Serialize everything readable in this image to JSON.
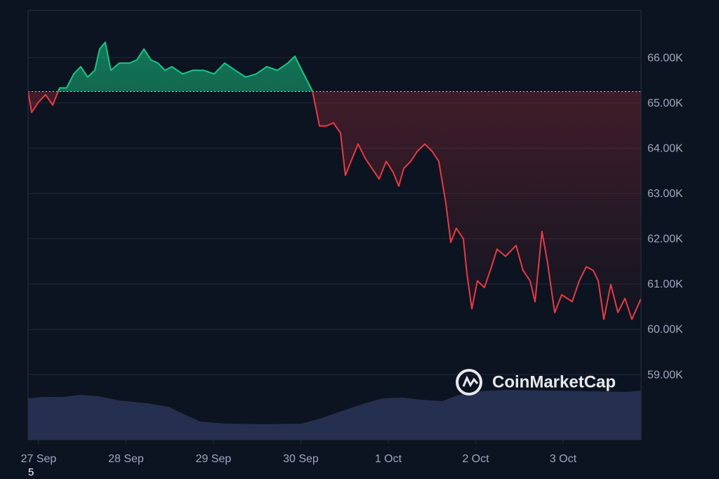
{
  "chart_data": {
    "type": "line",
    "x": [
      -0.12,
      -0.08,
      0,
      0.08,
      0.161,
      0.241,
      0.321,
      0.402,
      0.482,
      0.562,
      0.643,
      0.699,
      0.763,
      0.827,
      0.924,
      1.044,
      1.124,
      1.205,
      1.285,
      1.365,
      1.446,
      1.526,
      1.647,
      1.767,
      1.888,
      2.008,
      2.129,
      2.249,
      2.369,
      2.49,
      2.61,
      2.731,
      2.851,
      2.932,
      3.012,
      3.133,
      3.213,
      3.293,
      3.373,
      3.454,
      3.51,
      3.574,
      3.655,
      3.735,
      3.815,
      3.896,
      3.976,
      4.056,
      4.12,
      4.177,
      4.257,
      4.337,
      4.418,
      4.498,
      4.578,
      4.659,
      4.715,
      4.779,
      4.859,
      4.9,
      4.956,
      5.02,
      5.1,
      5.181,
      5.245,
      5.341,
      5.462,
      5.542,
      5.622,
      5.679,
      5.759,
      5.823,
      5.904,
      5.984,
      6.104,
      6.185,
      6.265,
      6.345,
      6.402,
      6.466,
      6.546,
      6.627,
      6.707,
      6.787,
      6.892
    ],
    "values": [
      65260,
      64790,
      65020,
      65180,
      64950,
      65330,
      65330,
      65640,
      65800,
      65570,
      65720,
      66190,
      66340,
      65720,
      65880,
      65880,
      65950,
      66190,
      65950,
      65880,
      65720,
      65800,
      65640,
      65720,
      65720,
      65640,
      65880,
      65720,
      65570,
      65640,
      65800,
      65720,
      65880,
      66030,
      65720,
      65260,
      64490,
      64490,
      64560,
      64330,
      63400,
      63710,
      64090,
      63780,
      63550,
      63320,
      63710,
      63470,
      63160,
      63550,
      63710,
      63940,
      64090,
      63940,
      63710,
      62780,
      61920,
      62230,
      62000,
      61230,
      60450,
      61070,
      60920,
      61380,
      61770,
      61610,
      61850,
      61300,
      61070,
      60610,
      62160,
      61460,
      60370,
      60760,
      60610,
      61070,
      61380,
      61300,
      61070,
      60220,
      60990,
      60370,
      60680,
      60220,
      60680
    ],
    "baseline": 65250,
    "up_color": "#16c784",
    "down_color": "#ea3943",
    "xlim": [
      -0.12,
      6.892
    ],
    "xticks": [
      {
        "value": 0,
        "label": "27 Sep"
      },
      {
        "value": 1,
        "label": "28 Sep"
      },
      {
        "value": 2,
        "label": "29 Sep"
      },
      {
        "value": 3,
        "label": "30 Sep"
      },
      {
        "value": 4,
        "label": "1 Oct"
      },
      {
        "value": 5,
        "label": "2 Oct"
      },
      {
        "value": 6,
        "label": "3 Oct"
      }
    ],
    "ylim": [
      57560,
      67040
    ],
    "yticks": [
      {
        "value": 59000,
        "label": "59.00K"
      },
      {
        "value": 60000,
        "label": "60.00K"
      },
      {
        "value": 61000,
        "label": "61.00K"
      },
      {
        "value": 62000,
        "label": "62.00K"
      },
      {
        "value": 63000,
        "label": "63.00K"
      },
      {
        "value": 64000,
        "label": "64.00K"
      },
      {
        "value": 65000,
        "label": "65.00K"
      },
      {
        "value": 66000,
        "label": "66.00K"
      }
    ],
    "grid": true,
    "watermark": "CoinMarketCap",
    "footnote": "5"
  }
}
